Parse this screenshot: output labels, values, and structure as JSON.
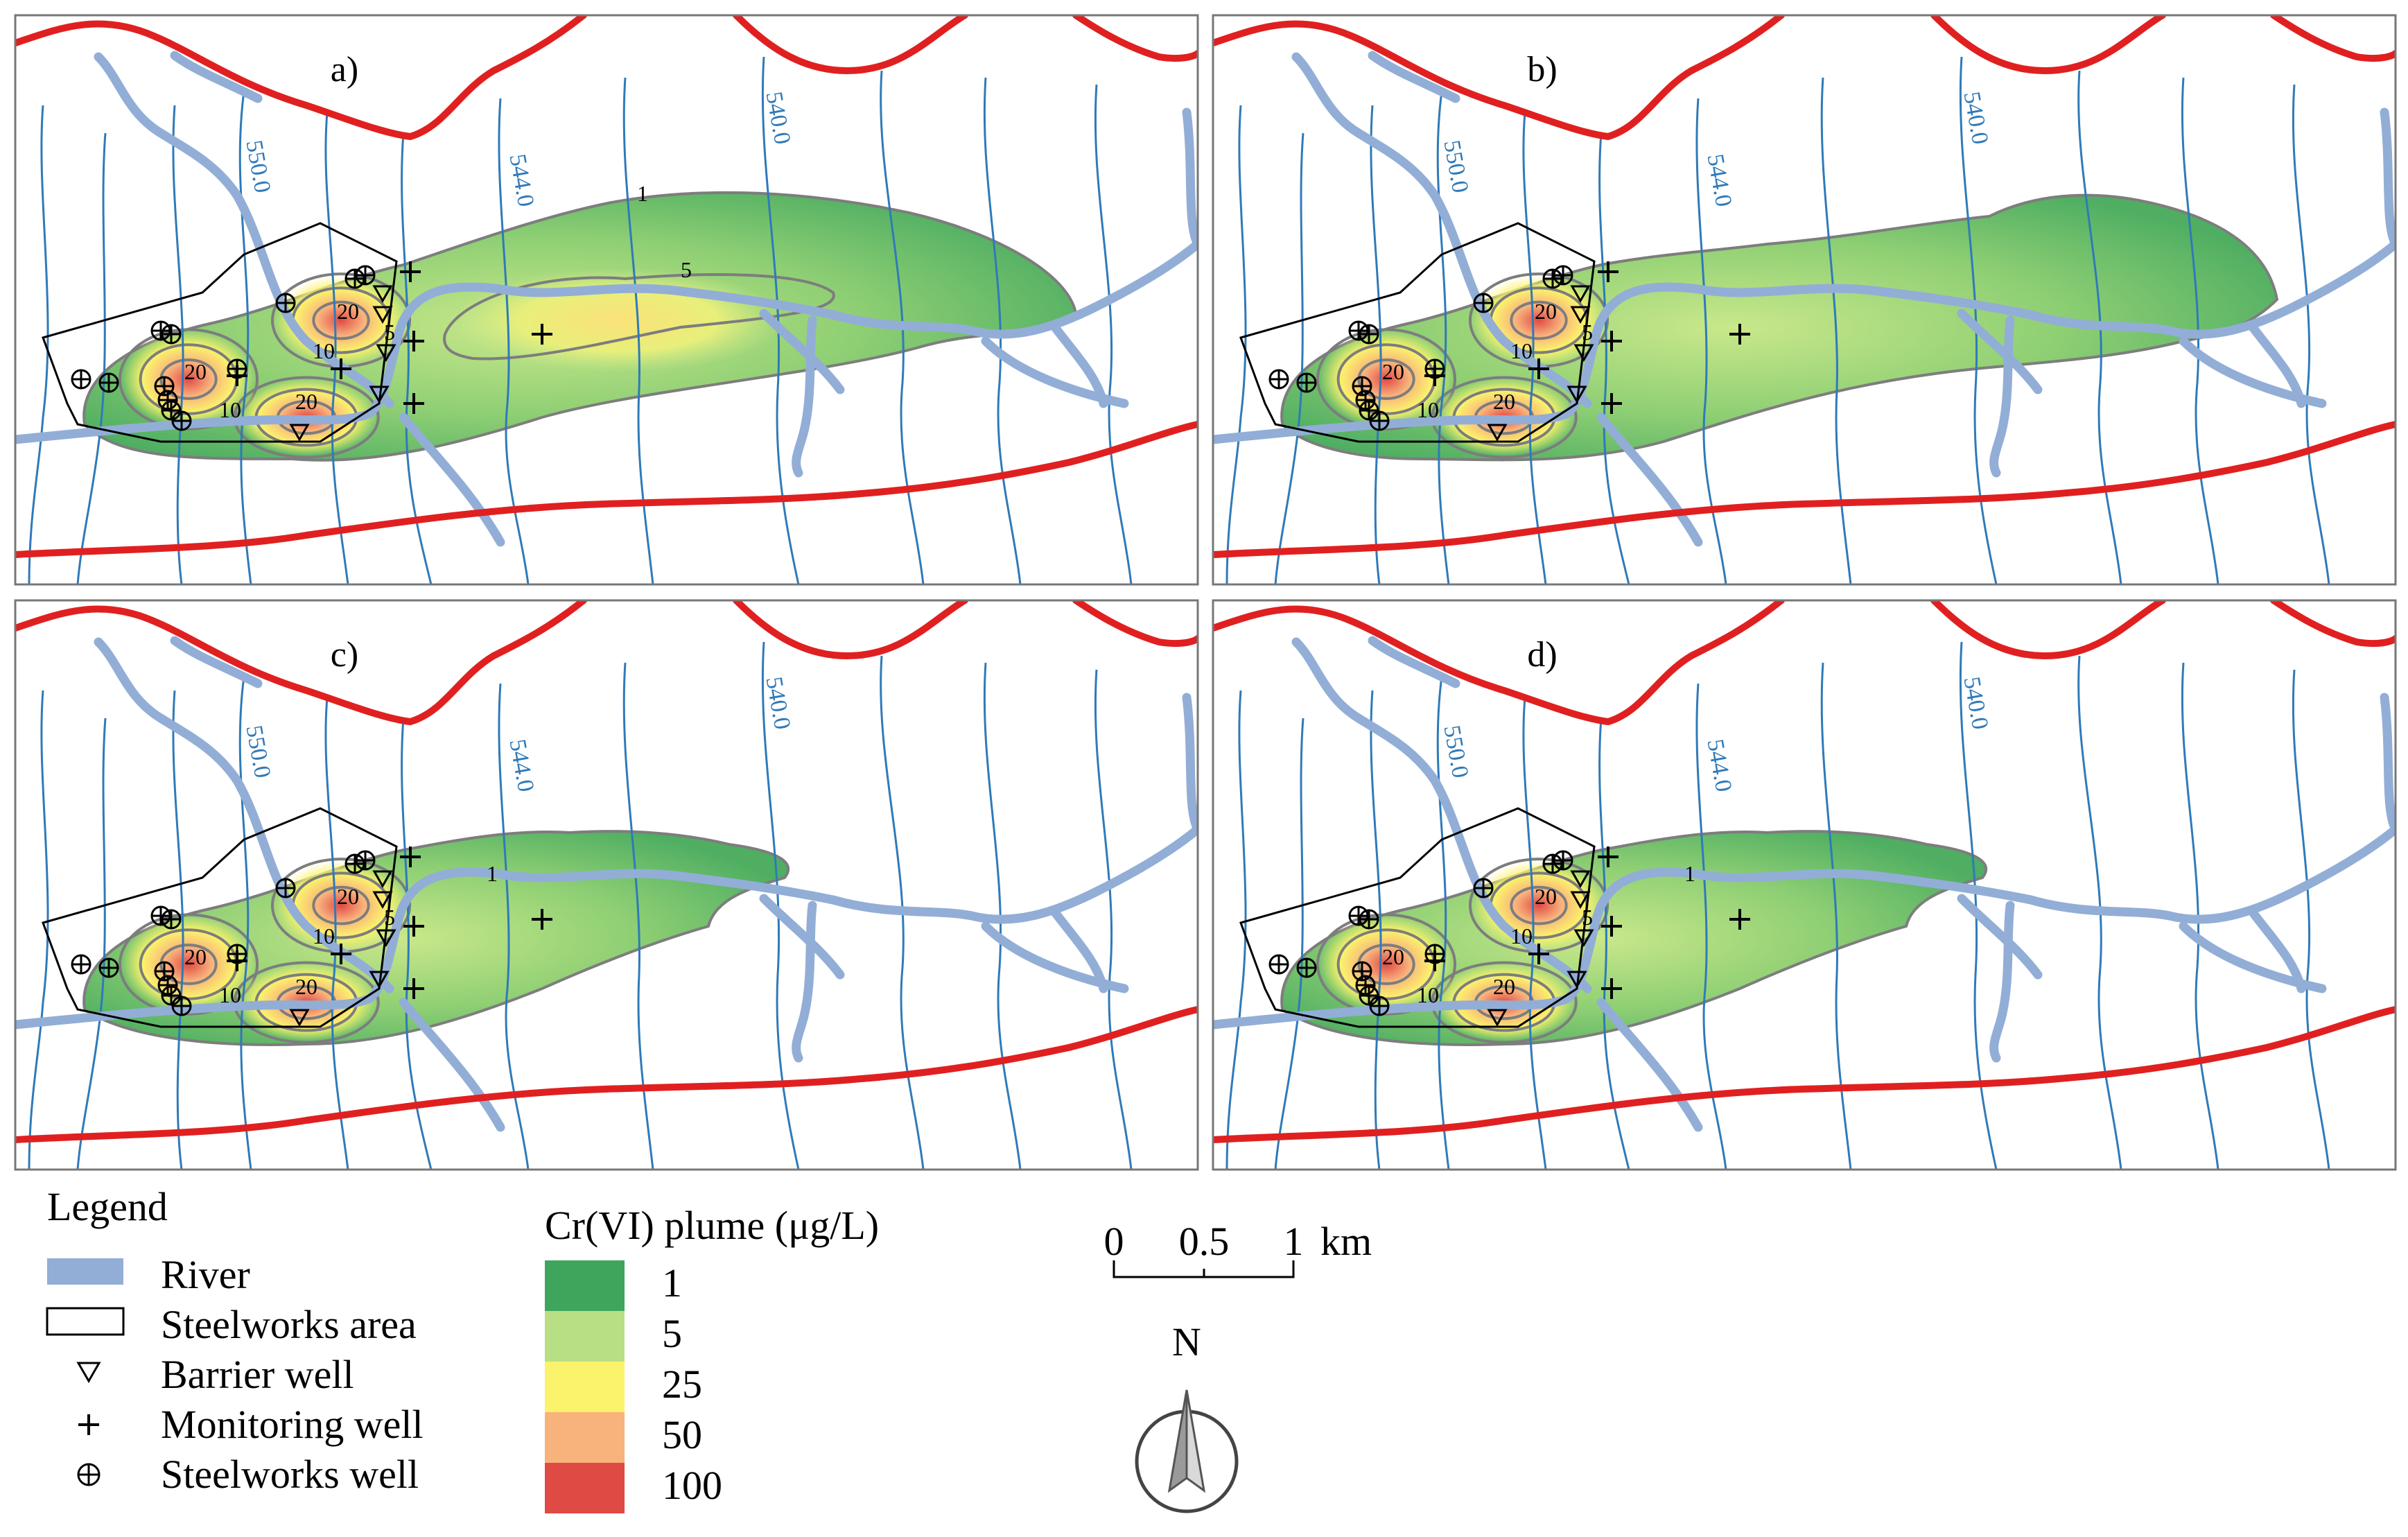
{
  "panels": [
    {
      "id": "a",
      "label": "a)",
      "plume_extent": "long",
      "extra_labels": [
        "1",
        "5"
      ]
    },
    {
      "id": "b",
      "label": "b)",
      "plume_extent": "medium",
      "extra_labels": []
    },
    {
      "id": "c",
      "label": "c)",
      "plume_extent": "short",
      "extra_labels": [
        "1"
      ]
    },
    {
      "id": "d",
      "label": "d)",
      "plume_extent": "short",
      "extra_labels": [
        "1"
      ]
    }
  ],
  "head_contours": [
    "550.0",
    "544.0",
    "540.0"
  ],
  "inner_contours": [
    "20",
    "10",
    "20",
    "10",
    "20",
    "5"
  ],
  "legend": {
    "title": "Legend",
    "items": [
      {
        "label": "River",
        "symbol": "river"
      },
      {
        "label": "Steelworks area",
        "symbol": "rect"
      },
      {
        "label": "Barrier well",
        "symbol": "triangle-down"
      },
      {
        "label": "Monitoring well",
        "symbol": "plus"
      },
      {
        "label": "Steelworks well",
        "symbol": "circled-plus"
      }
    ]
  },
  "plume_scale": {
    "title": "Cr(VI) plume (μg/L)",
    "classes": [
      {
        "label": "1",
        "color": "#3fa55c"
      },
      {
        "label": "5",
        "color": "#b9df84"
      },
      {
        "label": "25",
        "color": "#fbf36b"
      },
      {
        "label": "50",
        "color": "#f8b27c"
      },
      {
        "label": "100",
        "color": "#e04a45"
      }
    ]
  },
  "scale_bar": {
    "ticks": [
      "0",
      "0.5",
      "1"
    ],
    "unit": "km"
  },
  "north_arrow": {
    "label": "N"
  },
  "colors": {
    "river": "#92aed6",
    "boundary": "#e02020",
    "head": "#2f7ab9",
    "frame": "#777777"
  }
}
